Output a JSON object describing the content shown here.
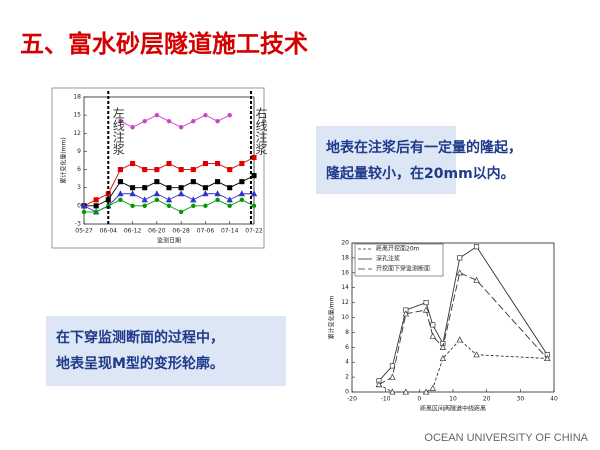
{
  "title": "五、富水砂层隧道施工技术",
  "callouts": [
    {
      "lines": [
        "地表在注浆后有一定量的隆起，",
        "隆起量较小，在20mm以内。"
      ]
    },
    {
      "lines": [
        "在下穿监测断面的过程中，",
        "地表呈现M型的变形轮廓。"
      ]
    }
  ],
  "footer": "OCEAN UNIVERSITY OF CHINA",
  "chart_data": [
    {
      "type": "line",
      "xlabel": "监测日期",
      "ylabel": "累计变化量(mm)",
      "x": [
        0,
        4,
        8,
        12,
        16,
        20,
        24,
        28,
        32,
        36,
        40,
        44,
        48,
        52,
        56
      ],
      "xlim": [
        0,
        56
      ],
      "xticks": [
        {
          "value": 0,
          "label": "05-27"
        },
        {
          "value": 8,
          "label": "06-04"
        },
        {
          "value": 16,
          "label": "06-12"
        },
        {
          "value": 24,
          "label": "06-20"
        },
        {
          "value": 32,
          "label": "06-28"
        },
        {
          "value": 40,
          "label": "07-06"
        },
        {
          "value": 48,
          "label": "07-14"
        },
        {
          "value": 56,
          "label": "07-22"
        }
      ],
      "ylim": [
        -3,
        18
      ],
      "yticks": [
        -3,
        0,
        3,
        6,
        9,
        12,
        15,
        18
      ],
      "vlines": [
        8,
        55
      ],
      "annotations": [
        {
          "text": "左线注浆",
          "x": 8
        },
        {
          "text": "右线注浆",
          "x": 55
        }
      ],
      "series": [
        {
          "color": "#cc44cc",
          "marker": "circle",
          "dash": "solid",
          "values": [
            null,
            null,
            null,
            14,
            13,
            14,
            15,
            14,
            13,
            14,
            15,
            14,
            15,
            null,
            null
          ]
        },
        {
          "color": "#dd0000",
          "marker": "square",
          "dash": "solid",
          "values": [
            0,
            1,
            2,
            6,
            7,
            6,
            6,
            7,
            6,
            6,
            7,
            7,
            6,
            7,
            8
          ]
        },
        {
          "color": "#000000",
          "marker": "square",
          "dash": "solid",
          "values": [
            0,
            0,
            1,
            4,
            3,
            3,
            4,
            3,
            3,
            4,
            3,
            4,
            3,
            4,
            5
          ]
        },
        {
          "color": "#3333cc",
          "marker": "triangle",
          "dash": "solid",
          "values": [
            0,
            -1,
            0,
            2,
            2,
            1,
            2,
            1,
            2,
            1,
            2,
            2,
            1,
            2,
            2
          ]
        },
        {
          "color": "#009900",
          "marker": "circle",
          "dash": "solid",
          "values": [
            -1,
            -1,
            0,
            1,
            0,
            0,
            1,
            0,
            -1,
            0,
            0,
            1,
            0,
            1,
            0
          ]
        }
      ]
    },
    {
      "type": "line",
      "xlabel": "距离区间两隧道中线距离",
      "ylabel": "累计变化量/mm",
      "x": [
        -12,
        -8,
        -4,
        2,
        4,
        7,
        12,
        17,
        38
      ],
      "xlim": [
        -20,
        40
      ],
      "xticks": [
        -20,
        -10,
        0,
        10,
        20,
        30,
        40
      ],
      "ylim": [
        0,
        20
      ],
      "yticks": [
        0,
        2,
        4,
        6,
        8,
        10,
        12,
        14,
        16,
        18,
        20
      ],
      "series": [
        {
          "name": "距离开挖面20m",
          "color": "#333333",
          "marker": "triangle",
          "dash": "dashed",
          "values": [
            1,
            0,
            0,
            0,
            0.5,
            4.5,
            7,
            5,
            4.5
          ]
        },
        {
          "name": "深孔注浆",
          "color": "#333333",
          "marker": "square",
          "dash": "solid",
          "values": [
            1.5,
            3.5,
            11,
            12,
            9,
            6.5,
            18,
            19.5,
            5
          ]
        },
        {
          "name": "开挖面下穿监测断面",
          "color": "#333333",
          "marker": "open-triangle",
          "dash": "longdash",
          "values": [
            1,
            2,
            10.5,
            11,
            7.5,
            6,
            16,
            15,
            4.5
          ]
        }
      ]
    }
  ]
}
